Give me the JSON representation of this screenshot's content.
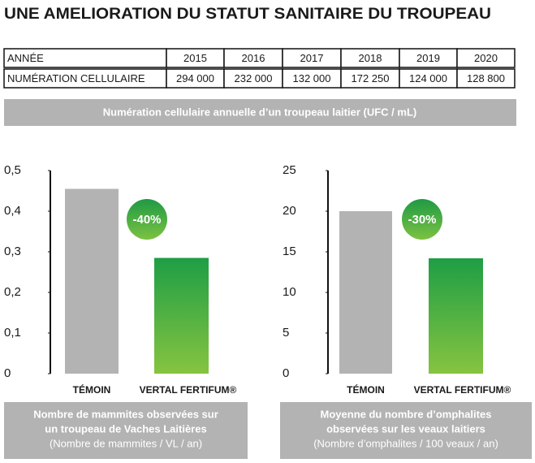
{
  "title": "UNE AMELIORATION DU STATUT SANITAIRE DU TROUPEAU",
  "table": {
    "rows": [
      [
        "ANNÉE",
        "2015",
        "2016",
        "2017",
        "2018",
        "2019",
        "2020"
      ],
      [
        "NUMÉRATION CELLULAIRE",
        "294 000",
        "232 000",
        "132 000",
        "172 250",
        "124 000",
        "128 800"
      ]
    ]
  },
  "banner": "Numération cellulaire annuelle d’un troupeau laitier (UFC / mL)",
  "chart_data": [
    {
      "type": "bar",
      "categories": [
        "TÉMOIN",
        "VERTAL FERTIFUM®"
      ],
      "values": [
        0.455,
        0.285
      ],
      "colors": [
        "#b3b3b3",
        "#1e9e45"
      ],
      "ylim": [
        0,
        0.5
      ],
      "yticks": [
        0,
        {
          "value": 0.1,
          "label": "0,1"
        },
        {
          "value": 0.2,
          "label": "0,2"
        },
        {
          "value": 0.3,
          "label": "0,3"
        },
        {
          "value": 0.4,
          "label": "0,4"
        },
        {
          "value": 0.5,
          "label": "0,5"
        }
      ],
      "annotation": "-40%",
      "caption": [
        "Nombre de mammites observées sur",
        "un troupeau de Vaches Laitières",
        "(Nombre de mammites / VL / an)"
      ]
    },
    {
      "type": "bar",
      "categories": [
        "TÉMOIN",
        "VERTAL FERTIFUM®"
      ],
      "values": [
        20,
        14.2
      ],
      "colors": [
        "#b3b3b3",
        "#1e9e45"
      ],
      "ylim": [
        0,
        25
      ],
      "yticks": [
        0,
        5,
        10,
        15,
        20,
        25
      ],
      "annotation": "-30%",
      "caption": [
        "Moyenne du nombre d’omphalites",
        "observées sur les veaux laitiers",
        "(Nombre d’omphalites / 100 veaux / an)"
      ]
    }
  ]
}
